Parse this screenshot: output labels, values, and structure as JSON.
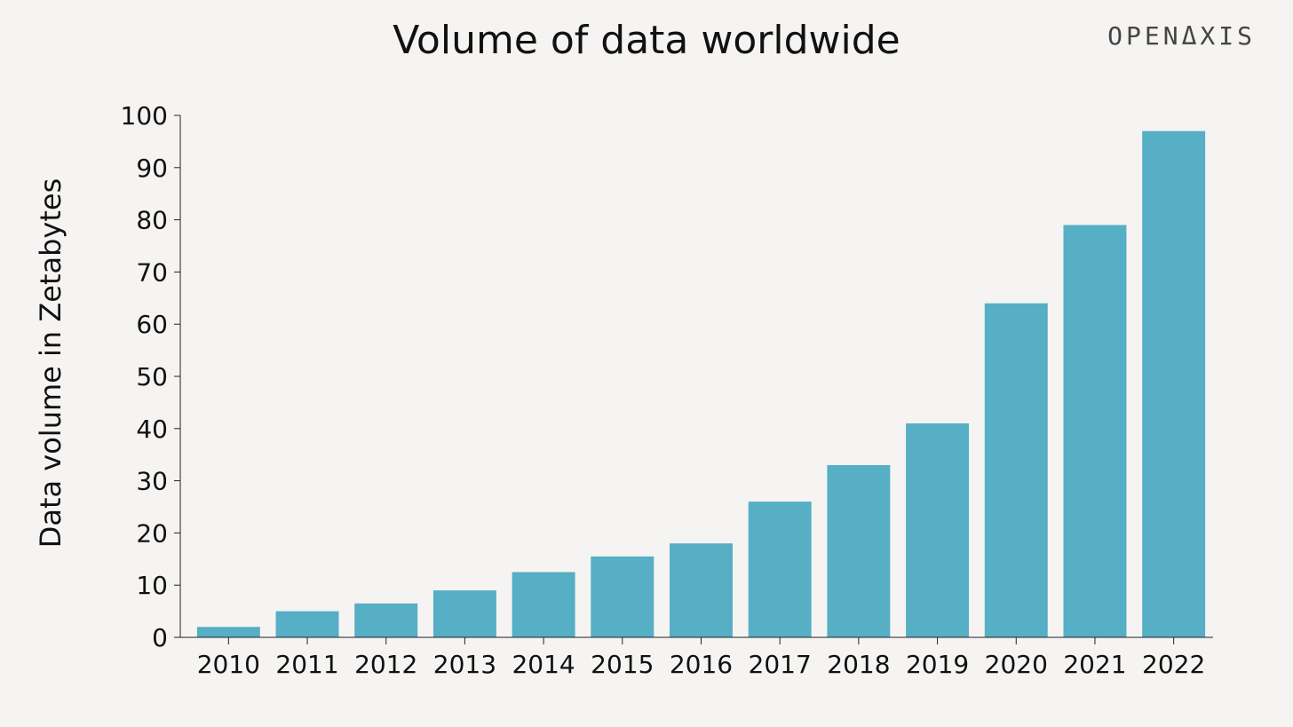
{
  "brand": "OPENΔXIS",
  "chart_data": {
    "type": "bar",
    "title": "Volume of data worldwide",
    "xlabel": "",
    "ylabel": "Data volume in Zetabytes",
    "categories": [
      "2010",
      "2011",
      "2012",
      "2013",
      "2014",
      "2015",
      "2016",
      "2017",
      "2018",
      "2019",
      "2020",
      "2021",
      "2022"
    ],
    "values": [
      2,
      5,
      6.5,
      9,
      12.5,
      15.5,
      18,
      26,
      33,
      41,
      64,
      79,
      97
    ],
    "ylim": [
      0,
      100
    ],
    "yticks": [
      0,
      10,
      20,
      30,
      40,
      50,
      60,
      70,
      80,
      90,
      100
    ],
    "grid": false,
    "legend": "none",
    "colors": {
      "bar": "#56afc4",
      "axis": "#222222",
      "background": "#f5f4f2"
    }
  }
}
